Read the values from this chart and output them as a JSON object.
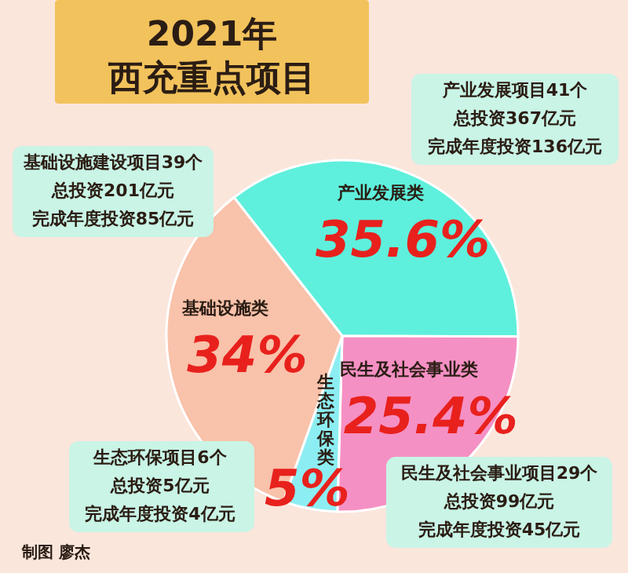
{
  "chart_data": {
    "type": "pie",
    "title": "2021年",
    "subtitle": "西充重点项目",
    "categories": [
      "产业发展类",
      "民生及社会事业类",
      "生态环保类",
      "基础设施类"
    ],
    "values": [
      35.6,
      25.4,
      5,
      34
    ],
    "value_labels": [
      "35.6%",
      "25.4%",
      "5%",
      "34%"
    ],
    "colors": [
      "#5ef0dc",
      "#f590c4",
      "#8ceef2",
      "#f9c2aa"
    ],
    "annotations": [
      "产业发展项目41个",
      "总投资367亿元",
      "完成年度投资136亿元",
      "基础设施建设项目39个",
      "总投资201亿元",
      "完成年度投资85亿元",
      "生态环保项目6个",
      "总投资5亿元",
      "完成年度投资4亿元",
      "民生及社会事业项目29个",
      "总投资99亿元",
      "完成年度投资45亿元",
      "制图 廖杰"
    ]
  }
}
